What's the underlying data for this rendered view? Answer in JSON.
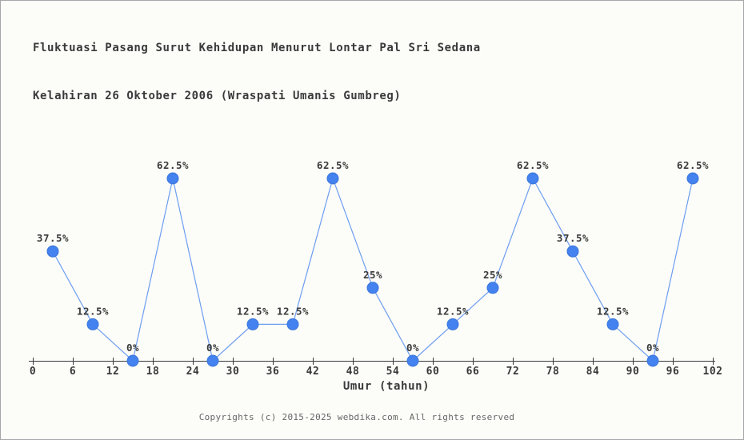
{
  "header": {
    "title_line1": "Fluktuasi Pasang Surut Kehidupan Menurut Lontar Pal Sri Sedana",
    "title_line2": "Kelahiran 26 Oktober 2006 (Wraspati Umanis Gumbreg)"
  },
  "chart_data": {
    "type": "line",
    "x": [
      3,
      9,
      15,
      21,
      27,
      33,
      39,
      45,
      51,
      57,
      63,
      69,
      75,
      81,
      87,
      93,
      99
    ],
    "values": [
      37.5,
      12.5,
      0,
      62.5,
      0,
      12.5,
      12.5,
      62.5,
      25,
      0,
      12.5,
      25,
      62.5,
      37.5,
      12.5,
      0,
      62.5
    ],
    "point_labels": [
      "37.5%",
      "12.5%",
      "0%",
      "62.5%",
      "0%",
      "12.5%",
      "12.5%",
      "62.5%",
      "25%",
      "0%",
      "12.5%",
      "25%",
      "62.5%",
      "37.5%",
      "12.5%",
      "0%",
      "62.5%"
    ],
    "x_ticks": [
      0,
      6,
      12,
      18,
      24,
      30,
      36,
      42,
      48,
      54,
      60,
      66,
      72,
      78,
      84,
      90,
      96,
      102
    ],
    "x_range": [
      0,
      102
    ],
    "y_range": [
      0,
      62.5
    ],
    "xlabel": "Umur (tahun)",
    "grid": false,
    "legend": "none",
    "colors": {
      "marker": "#4382ef",
      "marker_edge": "#3b76d9",
      "line": "#6d9ef0",
      "axis": "#3a3a3a",
      "label_text": "#3a3a3a",
      "background": "#fcfcf9"
    }
  },
  "footer": {
    "copyright": "Copyrights (c) 2015-2025 webdika.com. All rights reserved"
  }
}
